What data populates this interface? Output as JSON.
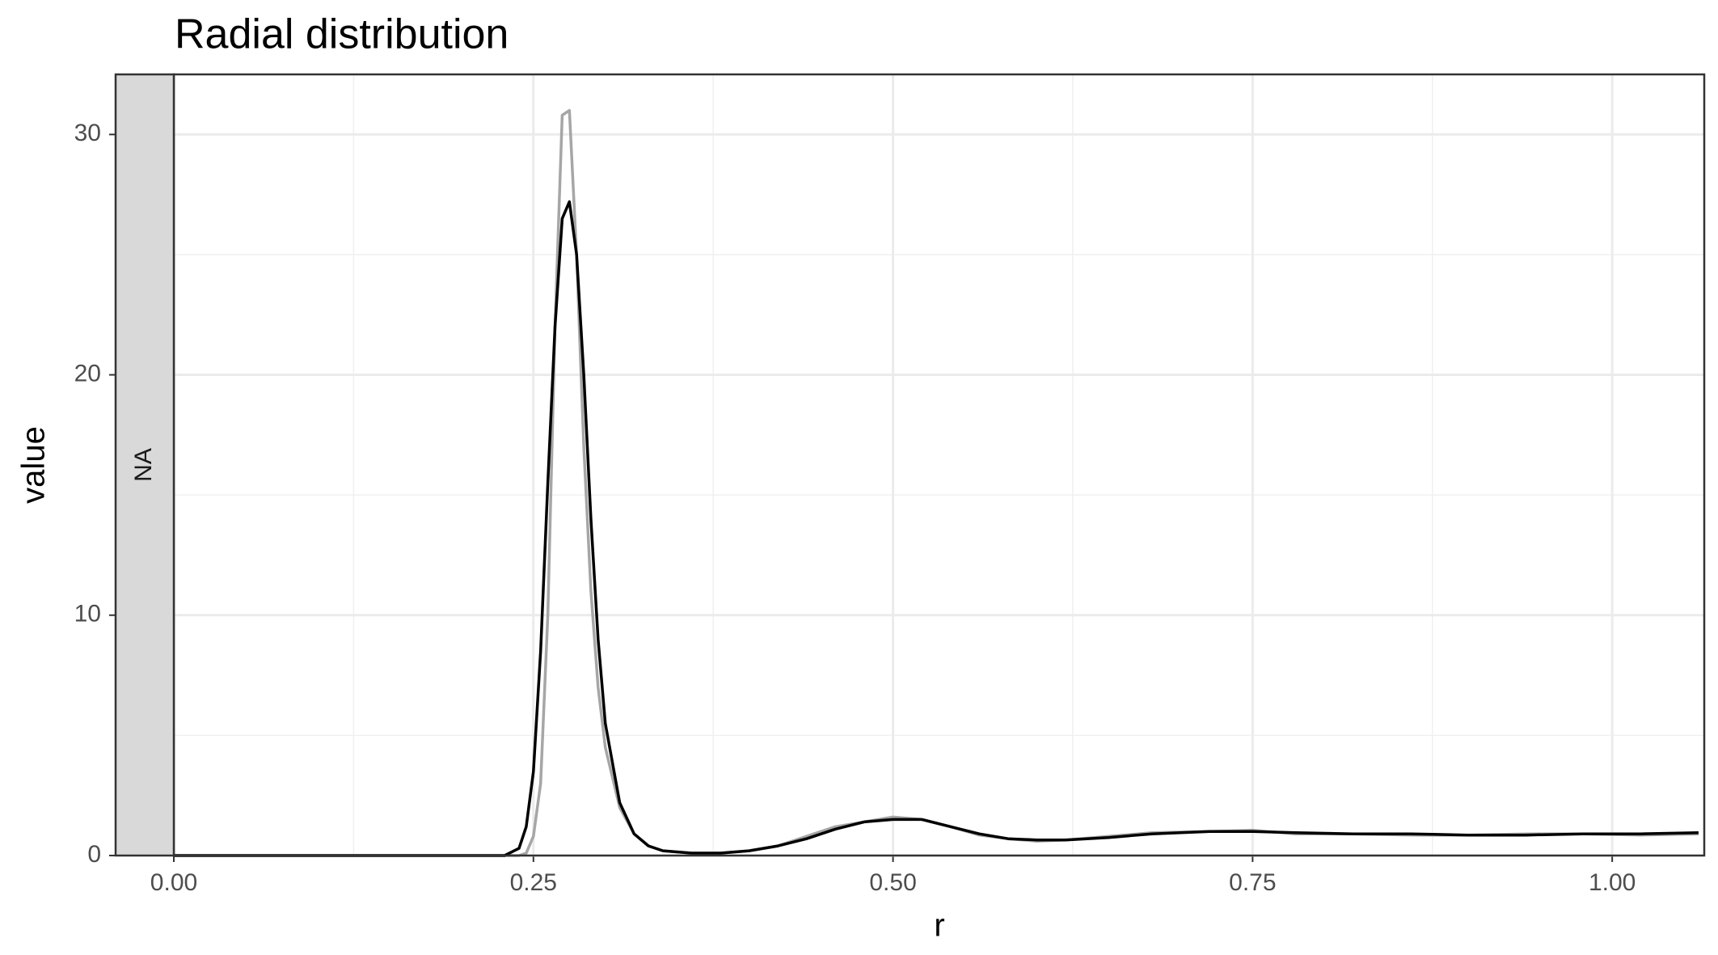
{
  "chart_data": {
    "type": "line",
    "title": "Radial distribution",
    "strip": "NA",
    "x_label": "r",
    "y_label": "value",
    "x": [
      0,
      0.05,
      0.1,
      0.15,
      0.2,
      0.23,
      0.24,
      0.245,
      0.25,
      0.255,
      0.26,
      0.265,
      0.27,
      0.275,
      0.28,
      0.285,
      0.29,
      0.295,
      0.3,
      0.31,
      0.32,
      0.33,
      0.34,
      0.36,
      0.38,
      0.4,
      0.42,
      0.44,
      0.46,
      0.48,
      0.5,
      0.52,
      0.54,
      0.56,
      0.58,
      0.6,
      0.62,
      0.65,
      0.68,
      0.72,
      0.75,
      0.78,
      0.82,
      0.86,
      0.9,
      0.94,
      0.98,
      1.02,
      1.06
    ],
    "series": [
      {
        "color": "#a6a6a6",
        "values": [
          0,
          0,
          0,
          0,
          0,
          0,
          0,
          0.1,
          0.8,
          3,
          10,
          22,
          30.8,
          31,
          25,
          17,
          11,
          7,
          4.5,
          2,
          0.9,
          0.4,
          0.2,
          0.1,
          0.1,
          0.2,
          0.4,
          0.8,
          1.2,
          1.4,
          1.6,
          1.5,
          1.2,
          0.85,
          0.7,
          0.6,
          0.65,
          0.8,
          0.95,
          1.0,
          1.05,
          0.9,
          0.9,
          0.85,
          0.85,
          0.9,
          0.9,
          0.85,
          0.9
        ]
      },
      {
        "color": "#000000",
        "values": [
          0,
          0,
          0,
          0,
          0,
          0,
          0.3,
          1.2,
          3.5,
          8.5,
          15.5,
          22,
          26.5,
          27.2,
          25,
          20,
          14,
          9,
          5.5,
          2.2,
          0.9,
          0.4,
          0.2,
          0.1,
          0.1,
          0.2,
          0.4,
          0.7,
          1.1,
          1.4,
          1.5,
          1.5,
          1.2,
          0.9,
          0.7,
          0.65,
          0.65,
          0.75,
          0.9,
          1.0,
          1.0,
          0.95,
          0.9,
          0.9,
          0.85,
          0.85,
          0.9,
          0.9,
          0.95
        ]
      }
    ],
    "xlim": [
      0,
      1.064
    ],
    "ylim": [
      0,
      32.5
    ],
    "xticks": [
      {
        "value": 0,
        "label": "0.00"
      },
      0.25,
      {
        "value": 0.5,
        "label": "0.50"
      },
      0.75,
      {
        "value": 1,
        "label": "1.00"
      }
    ],
    "yticks": [
      0,
      10,
      20,
      30
    ],
    "x_minor_grid": [
      0.125,
      0.375,
      0.625,
      0.875
    ],
    "y_minor_grid": [
      5,
      15,
      25
    ],
    "grid": true
  }
}
